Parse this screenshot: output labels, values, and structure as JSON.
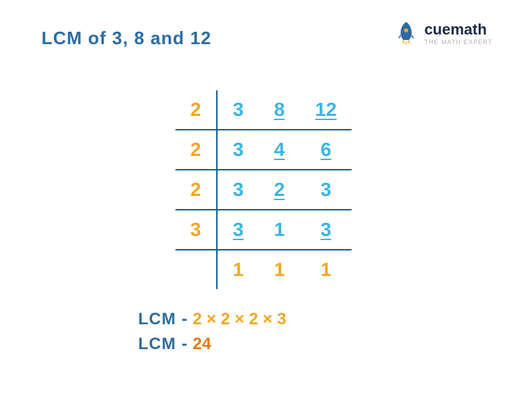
{
  "title": "LCM of 3, 8 and 12",
  "logo": {
    "brand": "cuemath",
    "tagline": "THE MATH EXPERT"
  },
  "colors": {
    "blue": "#2b6ca3",
    "cyan": "#3cb4e5",
    "orange": "#f5a623",
    "darkOrange": "#e67817",
    "navy": "#1a2b4a",
    "borderBlue": "#1a5a8a"
  },
  "divisionTable": {
    "rows": [
      {
        "divisor": "2",
        "values": [
          {
            "v": "3",
            "u": false
          },
          {
            "v": "8",
            "u": true
          },
          {
            "v": "12",
            "u": true
          }
        ],
        "border": true
      },
      {
        "divisor": "2",
        "values": [
          {
            "v": "3",
            "u": false
          },
          {
            "v": "4",
            "u": true
          },
          {
            "v": "6",
            "u": true
          }
        ],
        "border": true
      },
      {
        "divisor": "2",
        "values": [
          {
            "v": "3",
            "u": false
          },
          {
            "v": "2",
            "u": true
          },
          {
            "v": "3",
            "u": false
          }
        ],
        "border": true
      },
      {
        "divisor": "3",
        "values": [
          {
            "v": "3",
            "u": true
          },
          {
            "v": "1",
            "u": false
          },
          {
            "v": "3",
            "u": true
          }
        ],
        "border": true
      },
      {
        "divisor": "",
        "values": [
          {
            "v": "1",
            "u": false
          },
          {
            "v": "1",
            "u": false
          },
          {
            "v": "1",
            "u": false
          }
        ],
        "border": false
      }
    ],
    "divisorColor": "#f5a623",
    "valueColor": "#3cb4e5",
    "lastRowColor": "#f5a623",
    "fontSize": 28
  },
  "result": {
    "label": "LCM",
    "expression": "2 × 2 × 2 × 3",
    "answer": "24",
    "equals": "-",
    "labelColor": "#2b6ca3",
    "expressionColor": "#f5a623",
    "answerColor": "#e67817",
    "fontSize": 24
  }
}
